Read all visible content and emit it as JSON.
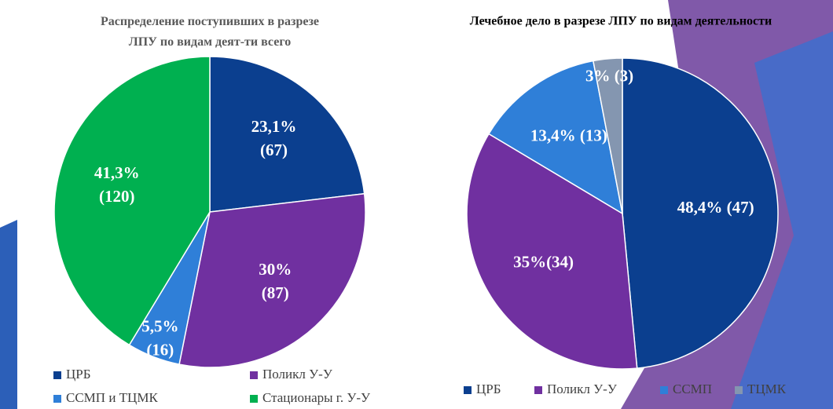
{
  "chart_data": [
    {
      "type": "pie",
      "title": "Распределение поступивших в разрезе ЛПУ по видам деят-ти всего",
      "categories": [
        "ЦРБ",
        "Поликл У-У",
        "ССМП и ТЦМК",
        "Стационары г. У-У"
      ],
      "values": [
        23.1,
        30,
        5.5,
        41.3
      ],
      "value_labels": [
        "23,1% (67)",
        "30% (87)",
        "5,5% (16)",
        "41,3% (120)"
      ],
      "colors": [
        "#0b3f8f",
        "#7030a0",
        "#2f7fd8",
        "#00b050"
      ]
    },
    {
      "type": "pie",
      "title": "Лечебное дело в разрезе ЛПУ по видам деятельности",
      "categories": [
        "ЦРБ",
        "Поликл У-У",
        "ССМП",
        "ТЦМК"
      ],
      "values": [
        48.4,
        35,
        13.4,
        3
      ],
      "value_labels": [
        "48,4% (47)",
        "35%(34)",
        "13,4% (13)",
        "3% (3)"
      ],
      "colors": [
        "#0b3f8f",
        "#7030a0",
        "#2f7fd8",
        "#8496b0"
      ]
    }
  ]
}
